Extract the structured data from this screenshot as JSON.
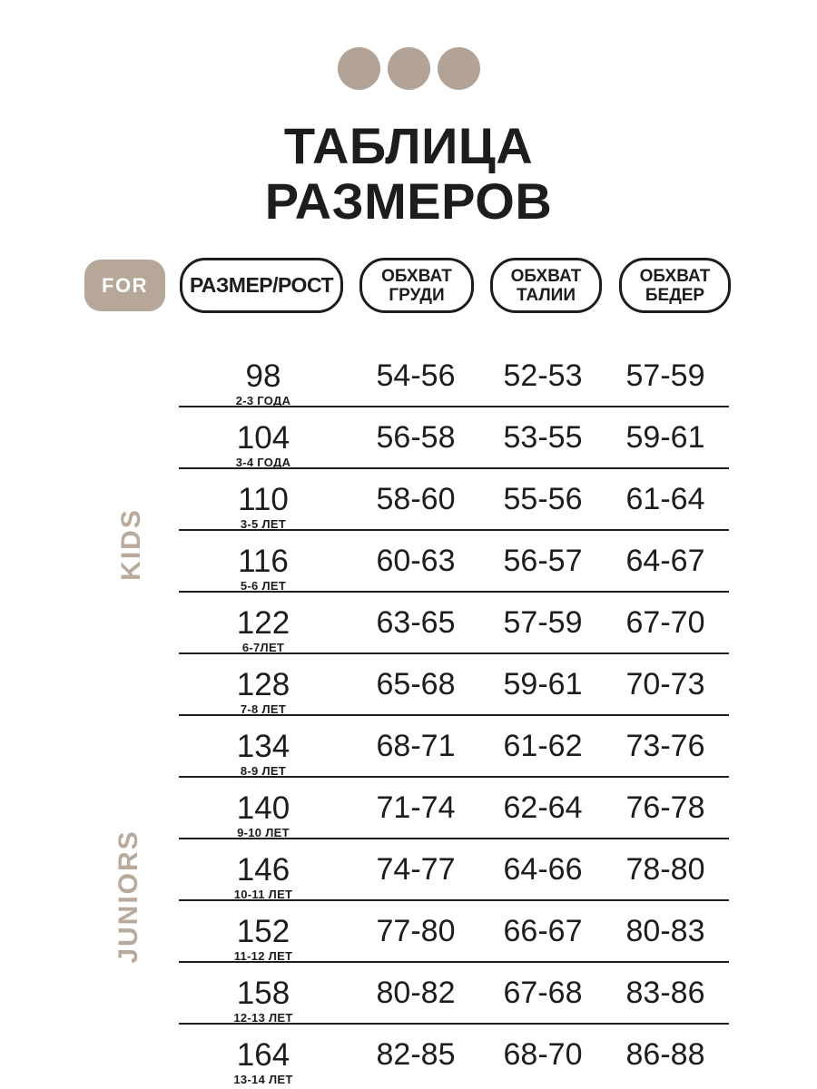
{
  "page": {
    "background": "#ffffff",
    "ink_color": "#1d1d1b",
    "accent_beige": "#b2a396",
    "badge_beige": "#b6a799",
    "side_label_beige": "#b9aa9c"
  },
  "decor": {
    "dots_count": 3
  },
  "title": {
    "line1": "ТАБЛИЦА",
    "line2": "РАЗМЕРОВ"
  },
  "header": {
    "for_label": "FOR",
    "size_column": "РАЗМЕР/РОСТ",
    "chest_column": {
      "line1": "ОБХВАТ",
      "line2": "ГРУДИ"
    },
    "waist_column": {
      "line1": "ОБХВАТ",
      "line2": "ТАЛИИ"
    },
    "hips_column": {
      "line1": "ОБХВАТ",
      "line2": "БЕДЕР"
    }
  },
  "side_labels": {
    "kids": "KIDS",
    "juniors": "JUNIORS"
  },
  "table": {
    "rows": [
      {
        "size": "98",
        "age": "2-3 ГОДА",
        "chest": "54-56",
        "waist": "52-53",
        "hips": "57-59"
      },
      {
        "size": "104",
        "age": "3-4 ГОДА",
        "chest": "56-58",
        "waist": "53-55",
        "hips": "59-61"
      },
      {
        "size": "110",
        "age": "3-5 ЛЕТ",
        "chest": "58-60",
        "waist": "55-56",
        "hips": "61-64"
      },
      {
        "size": "116",
        "age": "5-6 ЛЕТ",
        "chest": "60-63",
        "waist": "56-57",
        "hips": "64-67"
      },
      {
        "size": "122",
        "age": "6-7ЛЕТ",
        "chest": "63-65",
        "waist": "57-59",
        "hips": "67-70"
      },
      {
        "size": "128",
        "age": "7-8 ЛЕТ",
        "chest": "65-68",
        "waist": "59-61",
        "hips": "70-73"
      },
      {
        "size": "134",
        "age": "8-9 ЛЕТ",
        "chest": "68-71",
        "waist": "61-62",
        "hips": "73-76"
      },
      {
        "size": "140",
        "age": "9-10 ЛЕТ",
        "chest": "71-74",
        "waist": "62-64",
        "hips": "76-78"
      },
      {
        "size": "146",
        "age": "10-11 ЛЕТ",
        "chest": "74-77",
        "waist": "64-66",
        "hips": "78-80"
      },
      {
        "size": "152",
        "age": "11-12 ЛЕТ",
        "chest": "77-80",
        "waist": "66-67",
        "hips": "80-83"
      },
      {
        "size": "158",
        "age": "12-13 ЛЕТ",
        "chest": "80-82",
        "waist": "67-68",
        "hips": "83-86"
      },
      {
        "size": "164",
        "age": "13-14 ЛЕТ",
        "chest": "82-85",
        "waist": "68-70",
        "hips": "86-88"
      }
    ]
  }
}
